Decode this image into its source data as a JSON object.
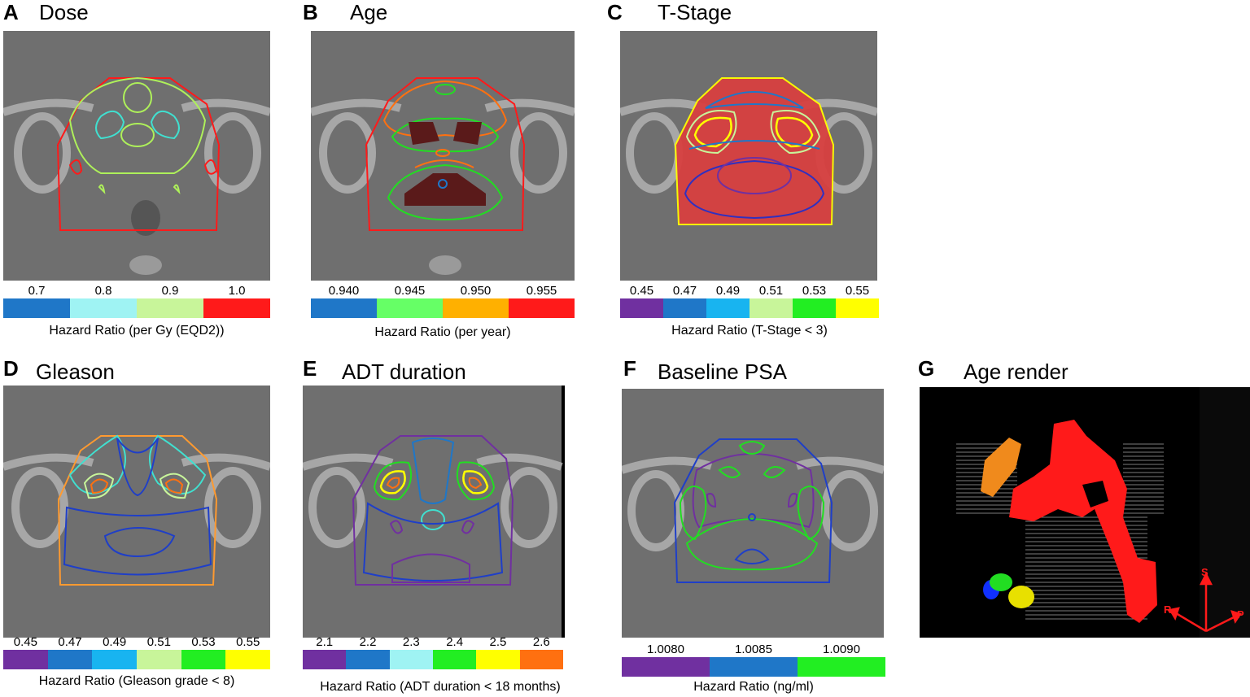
{
  "panels": [
    {
      "id": "A",
      "letter": "A",
      "title": "Dose",
      "ticks": [
        "0.7",
        "0.8",
        "0.9",
        "1.0"
      ],
      "colors": [
        "#1f77c8",
        "#9ff3f3",
        "#c8f59a",
        "#ff1a1a"
      ],
      "caption": "Hazard Ratio (per Gy (EQD2))"
    },
    {
      "id": "B",
      "letter": "B",
      "title": "Age",
      "ticks": [
        "0.940",
        "0.945",
        "0.950",
        "0.955"
      ],
      "colors": [
        "#1f77c8",
        "#66ff66",
        "#ffb000",
        "#ff1a1a"
      ],
      "caption": "Hazard Ratio (per year)"
    },
    {
      "id": "C",
      "letter": "C",
      "title": "T-Stage",
      "ticks": [
        "0.45",
        "0.47",
        "0.49",
        "0.51",
        "0.53",
        "0.55"
      ],
      "colors": [
        "#7030a0",
        "#1f77c8",
        "#18b4f0",
        "#c8f59a",
        "#22ee22",
        "#ffff00"
      ],
      "caption": "Hazard Ratio (T-Stage < 3)"
    },
    {
      "id": "D",
      "letter": "D",
      "title": "Gleason",
      "ticks": [
        "0.45",
        "0.47",
        "0.49",
        "0.51",
        "0.53",
        "0.55"
      ],
      "colors": [
        "#7030a0",
        "#1f77c8",
        "#18b4f0",
        "#c8f59a",
        "#22ee22",
        "#ffff00"
      ],
      "caption": "Hazard Ratio (Gleason grade < 8)"
    },
    {
      "id": "E",
      "letter": "E",
      "title": "ADT duration",
      "ticks": [
        "2.1",
        "2.2",
        "2.3",
        "2.4",
        "2.5",
        "2.6"
      ],
      "colors": [
        "#7030a0",
        "#1f77c8",
        "#9ff3f3",
        "#22ee22",
        "#ffff00",
        "#ff7010"
      ],
      "caption": "Hazard Ratio (ADT duration < 18 months)"
    },
    {
      "id": "F",
      "letter": "F",
      "title": "Baseline PSA",
      "ticks": [
        "1.0080",
        "1.0085",
        "1.0090"
      ],
      "colors": [
        "#7030a0",
        "#1f77c8",
        "#22ee22"
      ],
      "caption": "Hazard Ratio (ng/ml)"
    },
    {
      "id": "G",
      "letter": "G",
      "title": "Age render"
    }
  ],
  "render_axes": {
    "s": "S",
    "r": "R",
    "p": "P"
  }
}
